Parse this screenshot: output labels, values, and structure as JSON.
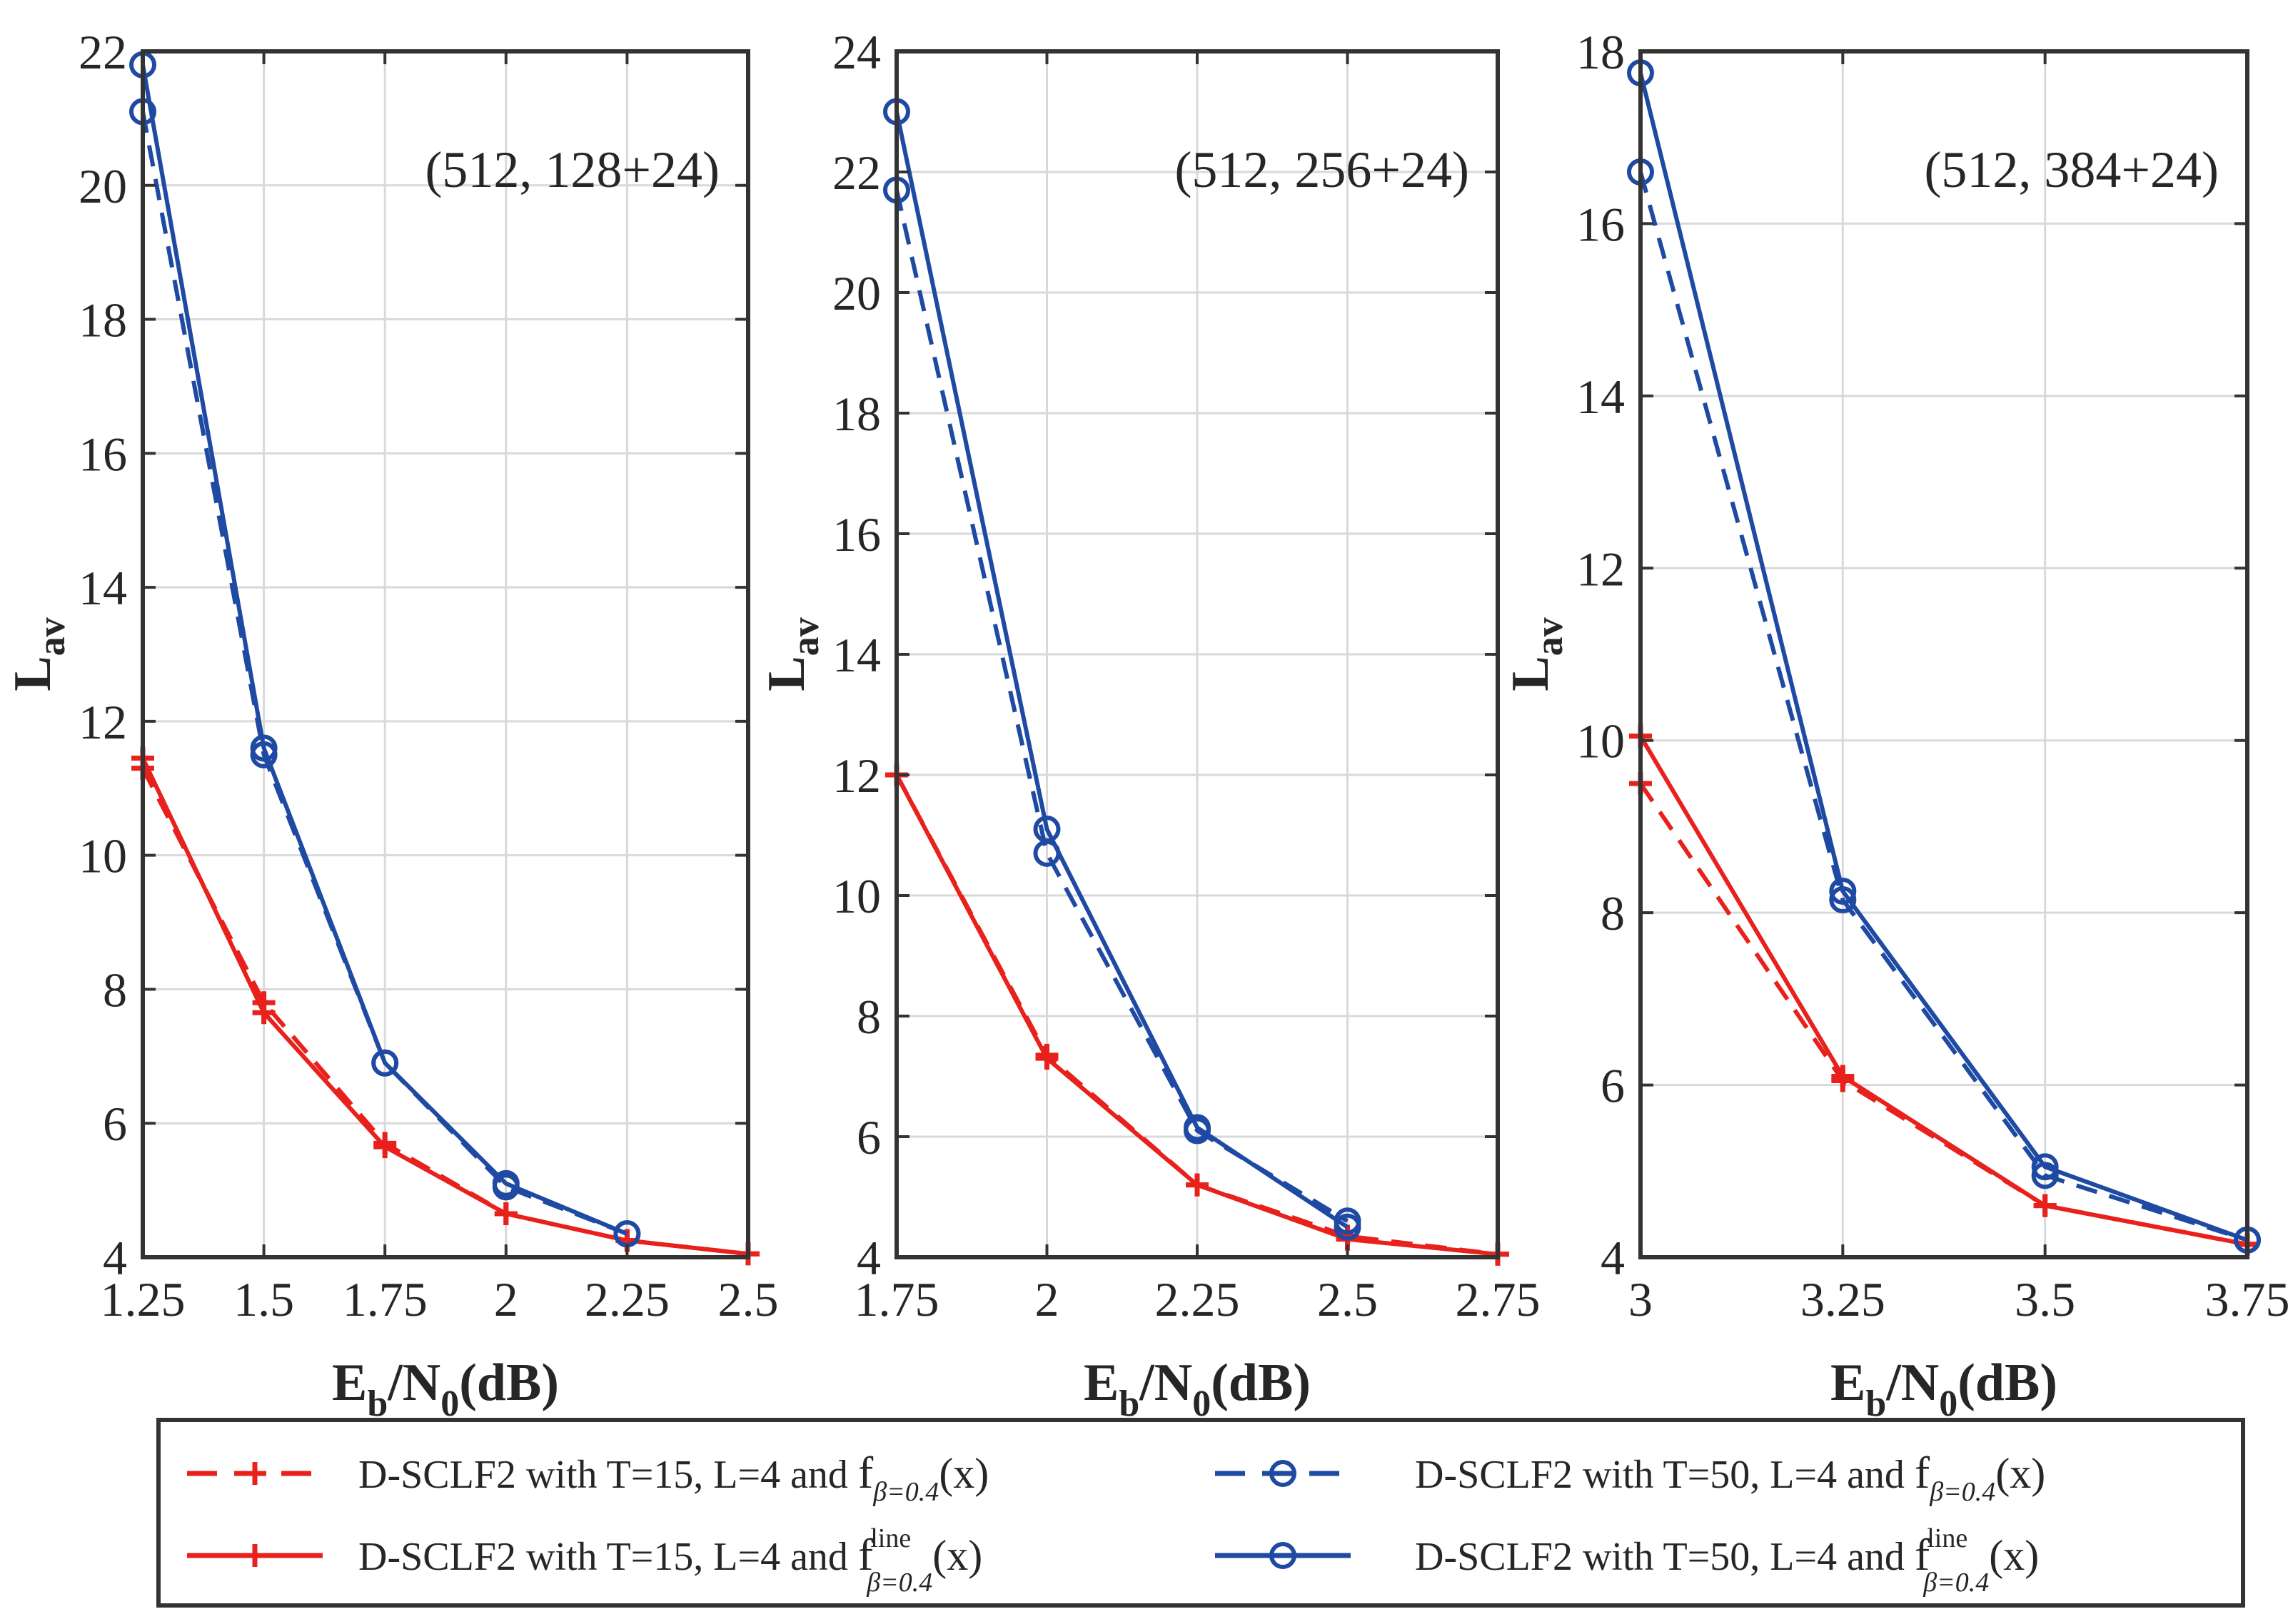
{
  "chart_data": [
    {
      "type": "line",
      "annotation": "(512, 128+24)",
      "xlabel": "Eb/N0(dB)",
      "ylabel": "Lav",
      "xlim": [
        1.25,
        2.5
      ],
      "ylim": [
        4,
        22
      ],
      "xticks": [
        1.25,
        1.5,
        1.75,
        2,
        2.25,
        2.5
      ],
      "xtick_labels": [
        "1.25",
        "1.5",
        "1.75",
        "2",
        "2.25",
        "2.5"
      ],
      "yticks": [
        4,
        6,
        8,
        10,
        12,
        14,
        16,
        18,
        20,
        22
      ],
      "ytick_labels": [
        "4",
        "6",
        "8",
        "10",
        "12",
        "14",
        "16",
        "18",
        "20",
        "22"
      ],
      "grid": true,
      "series": [
        {
          "name": "D-SCLF2 with T=15, L=4 and fβ=0.4(x)",
          "color": "#e8211c",
          "style": "dashed",
          "marker": "plus",
          "x": [
            1.25,
            1.5,
            1.75,
            2,
            2.25,
            2.5
          ],
          "y": [
            11.3,
            7.8,
            5.7,
            4.65,
            4.25,
            4.05
          ]
        },
        {
          "name": "D-SCLF2 with T=15, L=4 and fβ=0.4 line(x)",
          "color": "#e8211c",
          "style": "solid",
          "marker": "plus",
          "x": [
            1.25,
            1.5,
            1.75,
            2,
            2.25,
            2.5
          ],
          "y": [
            11.45,
            7.65,
            5.65,
            4.65,
            4.25,
            4.05
          ]
        },
        {
          "name": "D-SCLF2 with T=50, L=4 and fβ=0.4(x)",
          "color": "#1f4aa3",
          "style": "dashed",
          "marker": "circle",
          "x": [
            1.25,
            1.5,
            1.75,
            2,
            2.25
          ],
          "y": [
            21.1,
            11.5,
            6.9,
            5.05,
            4.35
          ]
        },
        {
          "name": "D-SCLF2 with T=50, L=4 and fβ=0.4 line(x)",
          "color": "#1f4aa3",
          "style": "solid",
          "marker": "circle",
          "x": [
            1.25,
            1.5,
            1.75,
            2,
            2.25
          ],
          "y": [
            21.8,
            11.6,
            6.9,
            5.1,
            4.35
          ]
        }
      ]
    },
    {
      "type": "line",
      "annotation": "(512, 256+24)",
      "xlabel": "Eb/N0(dB)",
      "ylabel": "Lav",
      "xlim": [
        1.75,
        2.75
      ],
      "ylim": [
        4,
        24
      ],
      "xticks": [
        1.75,
        2,
        2.25,
        2.5,
        2.75
      ],
      "xtick_labels": [
        "1.75",
        "2",
        "2.25",
        "2.5",
        "2.75"
      ],
      "yticks": [
        4,
        6,
        8,
        10,
        12,
        14,
        16,
        18,
        20,
        22,
        24
      ],
      "ytick_labels": [
        "4",
        "6",
        "8",
        "10",
        "12",
        "14",
        "16",
        "18",
        "20",
        "22",
        "24"
      ],
      "grid": true,
      "series": [
        {
          "name": "D-SCLF2 with T=15, L=4 and fβ=0.4(x)",
          "color": "#e8211c",
          "style": "dashed",
          "marker": "plus",
          "x": [
            1.75,
            2,
            2.25,
            2.5,
            2.75
          ],
          "y": [
            12.0,
            7.35,
            5.2,
            4.35,
            4.05
          ]
        },
        {
          "name": "D-SCLF2 with T=15, L=4 and fβ=0.4 line(x)",
          "color": "#e8211c",
          "style": "solid",
          "marker": "plus",
          "x": [
            1.75,
            2,
            2.25,
            2.5,
            2.75
          ],
          "y": [
            12.0,
            7.3,
            5.2,
            4.3,
            4.05
          ]
        },
        {
          "name": "D-SCLF2 with T=50, L=4 and fβ=0.4(x)",
          "color": "#1f4aa3",
          "style": "dashed",
          "marker": "circle",
          "x": [
            1.75,
            2,
            2.25,
            2.5
          ],
          "y": [
            21.7,
            10.7,
            6.1,
            4.6
          ]
        },
        {
          "name": "D-SCLF2 with T=50, L=4 and fβ=0.4 line(x)",
          "color": "#1f4aa3",
          "style": "solid",
          "marker": "circle",
          "x": [
            1.75,
            2,
            2.25,
            2.5
          ],
          "y": [
            23.0,
            11.1,
            6.15,
            4.5
          ]
        }
      ]
    },
    {
      "type": "line",
      "annotation": "(512, 384+24)",
      "xlabel": "Eb/N0(dB)",
      "ylabel": "Lav",
      "xlim": [
        3,
        3.75
      ],
      "ylim": [
        4,
        18
      ],
      "xticks": [
        3,
        3.25,
        3.5,
        3.75
      ],
      "xtick_labels": [
        "3",
        "3.25",
        "3.5",
        "3.75"
      ],
      "yticks": [
        4,
        6,
        8,
        10,
        12,
        14,
        16,
        18
      ],
      "ytick_labels": [
        "4",
        "6",
        "8",
        "10",
        "12",
        "14",
        "16",
        "18"
      ],
      "grid": true,
      "series": [
        {
          "name": "D-SCLF2 with T=15, L=4 and fβ=0.4(x)",
          "color": "#e8211c",
          "style": "dashed",
          "marker": "plus",
          "x": [
            3,
            3.25,
            3.5,
            3.75
          ],
          "y": [
            9.5,
            6.05,
            4.6,
            4.15
          ]
        },
        {
          "name": "D-SCLF2 with T=15, L=4 and fβ=0.4 line(x)",
          "color": "#e8211c",
          "style": "solid",
          "marker": "plus",
          "x": [
            3,
            3.25,
            3.5,
            3.75
          ],
          "y": [
            10.05,
            6.1,
            4.6,
            4.15
          ]
        },
        {
          "name": "D-SCLF2 with T=50, L=4 and fβ=0.4(x)",
          "color": "#1f4aa3",
          "style": "dashed",
          "marker": "circle",
          "x": [
            3,
            3.25,
            3.5,
            3.75
          ],
          "y": [
            16.6,
            8.15,
            4.95,
            4.2
          ]
        },
        {
          "name": "D-SCLF2 with T=50, L=4 and fβ=0.4 line(x)",
          "color": "#1f4aa3",
          "style": "solid",
          "marker": "circle",
          "x": [
            3,
            3.25,
            3.5,
            3.75
          ],
          "y": [
            17.75,
            8.25,
            5.05,
            4.2
          ]
        }
      ]
    }
  ],
  "legend": {
    "placement": "bottom",
    "entries": [
      {
        "text": "D-SCLF2 with T=15, L=4 and",
        "func": "f",
        "sub": "β=0.4",
        "sup": "",
        "arg": "(x)",
        "color": "#e8211c",
        "style": "dashed",
        "marker": "plus"
      },
      {
        "text": "D-SCLF2 with T=50, L=4 and",
        "func": "f",
        "sub": "β=0.4",
        "sup": "",
        "arg": "(x)",
        "color": "#1f4aa3",
        "style": "dashed",
        "marker": "circle"
      },
      {
        "text": "D-SCLF2 with T=15, L=4 and",
        "func": "f",
        "sub": "β=0.4",
        "sup": "line",
        "arg": "(x)",
        "color": "#e8211c",
        "style": "solid",
        "marker": "plus"
      },
      {
        "text": "D-SCLF2 with T=50, L=4 and",
        "func": "f",
        "sub": "β=0.4",
        "sup": "line",
        "arg": "(x)",
        "color": "#1f4aa3",
        "style": "solid",
        "marker": "circle"
      }
    ]
  },
  "axis_label_parts": {
    "x_main1": "E",
    "x_sub1": "b",
    "x_main2": "/N",
    "x_sub2": "0",
    "x_main3": "(dB)",
    "y_main": "L",
    "y_sub": "av"
  }
}
